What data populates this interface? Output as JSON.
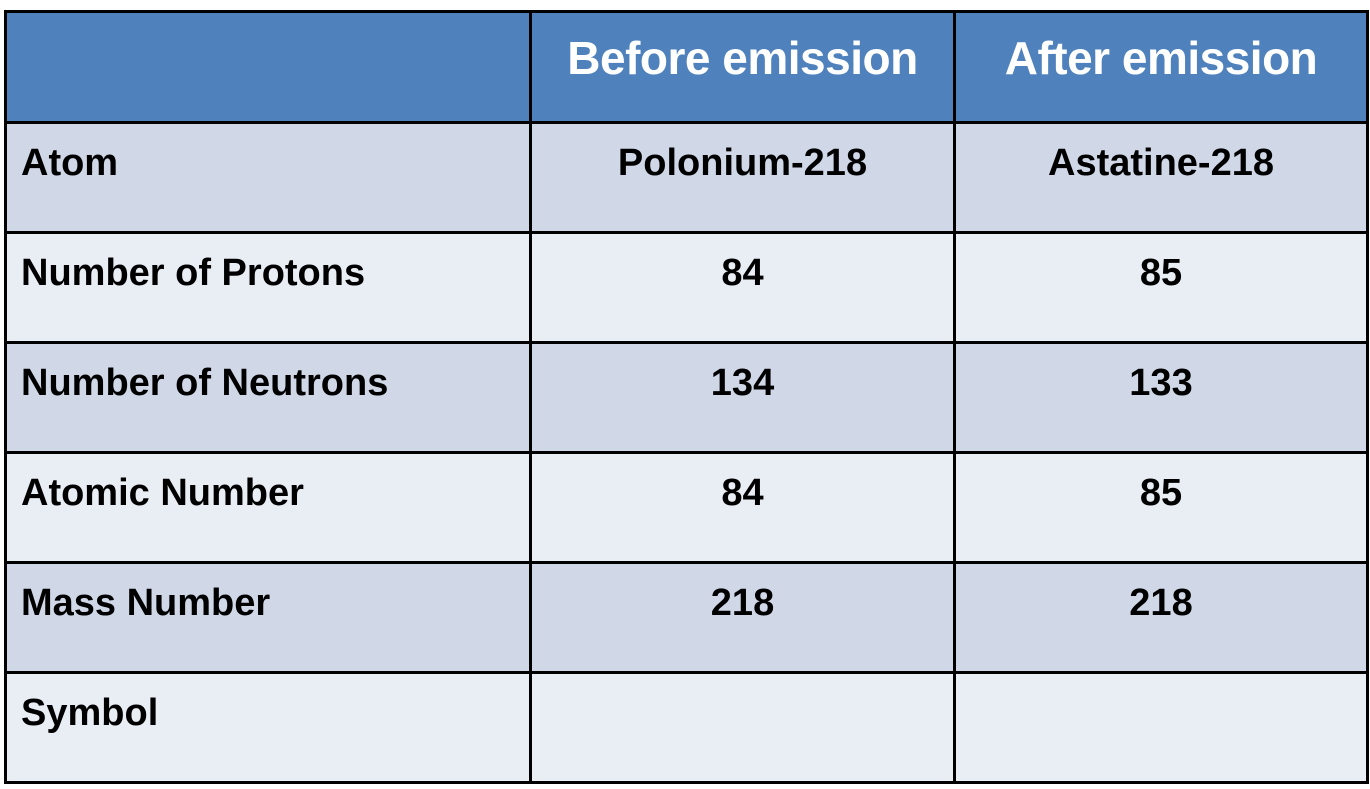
{
  "table": {
    "headers": [
      "",
      "Before emission",
      "After emission"
    ],
    "rows": [
      {
        "label": "Atom",
        "before": "Polonium-218",
        "after": "Astatine-218"
      },
      {
        "label": "Number of Protons",
        "before": "84",
        "after": "85"
      },
      {
        "label": "Number of Neutrons",
        "before": "134",
        "after": "133"
      },
      {
        "label": "Atomic Number",
        "before": "84",
        "after": "85"
      },
      {
        "label": "Mass Number",
        "before": "218",
        "after": "218"
      },
      {
        "label": "Symbol",
        "before": "",
        "after": ""
      }
    ]
  },
  "colors": {
    "header_background": "#4f81bd",
    "header_text": "#ffffff",
    "row_band_dark": "#d0d8e8",
    "row_band_light": "#e9edf4",
    "border": "#000000"
  }
}
